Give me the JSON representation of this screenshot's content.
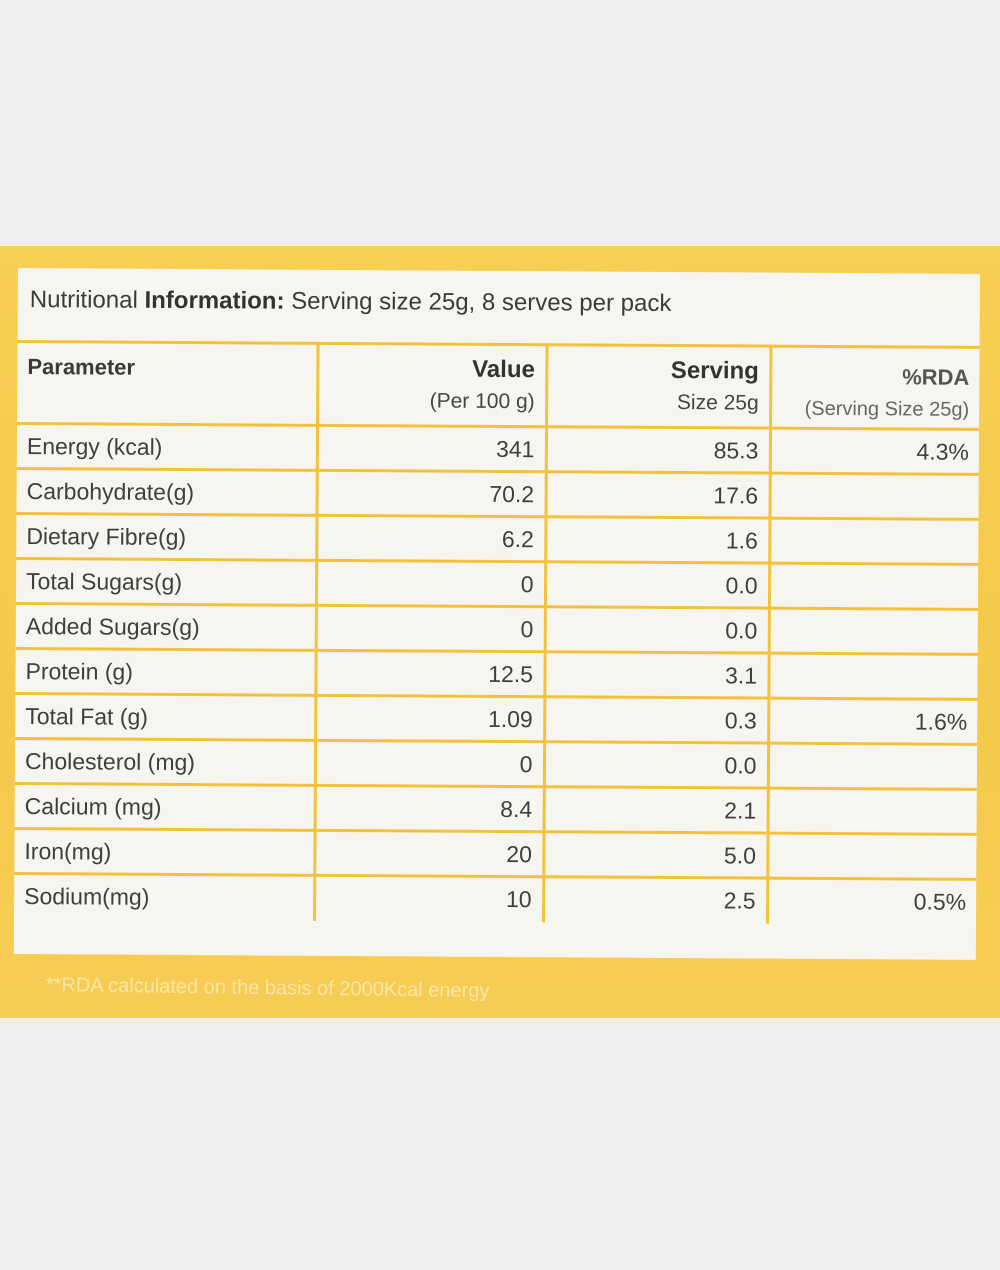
{
  "title": {
    "prefix": "Nutritional",
    "strong": "Information:",
    "rest": "Serving size 25g, 8 serves per pack"
  },
  "table": {
    "headers": {
      "parameter": "Parameter",
      "value_main": "Value",
      "value_sub": "(Per 100 g)",
      "serving_main": "Serving",
      "serving_sub": "Size 25g",
      "rda_main": "%RDA",
      "rda_sub": "(Serving Size 25g)"
    },
    "rows": [
      {
        "parameter": "Energy (kcal)",
        "value": "341",
        "serving": "85.3",
        "rda": "4.3%"
      },
      {
        "parameter": "Carbohydrate(g)",
        "value": "70.2",
        "serving": "17.6",
        "rda": ""
      },
      {
        "parameter": "Dietary Fibre(g)",
        "value": "6.2",
        "serving": "1.6",
        "rda": ""
      },
      {
        "parameter": "Total Sugars(g)",
        "value": "0",
        "serving": "0.0",
        "rda": ""
      },
      {
        "parameter": "Added Sugars(g)",
        "value": "0",
        "serving": "0.0",
        "rda": ""
      },
      {
        "parameter": "Protein (g)",
        "value": "12.5",
        "serving": "3.1",
        "rda": ""
      },
      {
        "parameter": "Total Fat (g)",
        "value": "1.09",
        "serving": "0.3",
        "rda": "1.6%"
      },
      {
        "parameter": "Cholesterol (mg)",
        "value": "0",
        "serving": "0.0",
        "rda": ""
      },
      {
        "parameter": "Calcium (mg)",
        "value": "8.4",
        "serving": "2.1",
        "rda": ""
      },
      {
        "parameter": "Iron(mg)",
        "value": "20",
        "serving": "5.0",
        "rda": ""
      },
      {
        "parameter": "Sodium(mg)",
        "value": "10",
        "serving": "2.5",
        "rda": "0.5%"
      }
    ]
  },
  "footnote": "**RDA calculated on the basis of 2000Kcal energy",
  "colors": {
    "pack_yellow": "#f6cd55",
    "table_border": "#f3c23d",
    "card_background": "#f7f5f0",
    "page_background": "#efefef"
  }
}
